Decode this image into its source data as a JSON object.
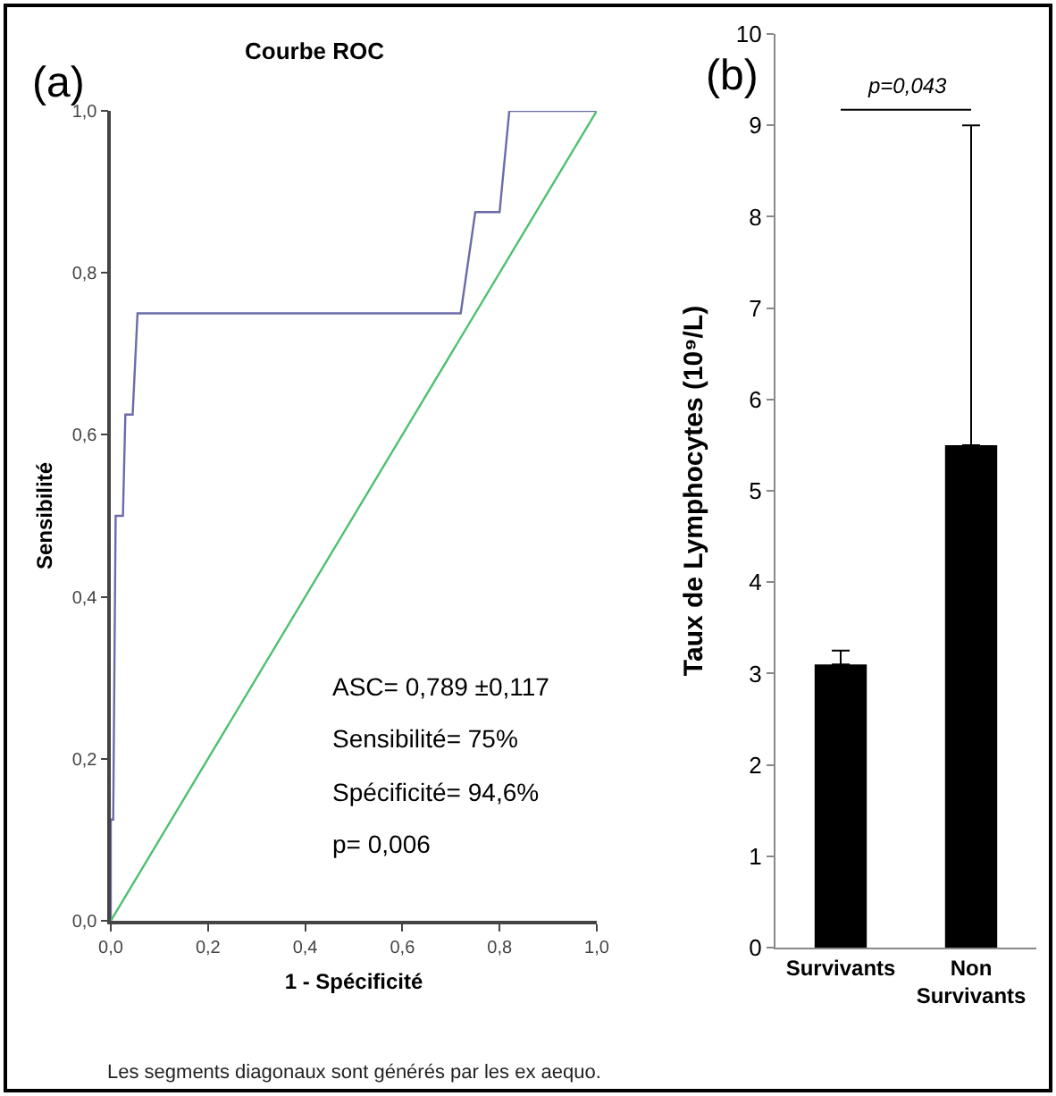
{
  "chart_data": [
    {
      "type": "line",
      "title": "Courbe ROC",
      "xlabel": "1 - Spécificité",
      "ylabel": "Sensibilité",
      "series": [
        {
          "color": "#6b6ba8",
          "x": [
            0,
            0,
            0.005,
            0.01,
            0.025,
            0.03,
            0.045,
            0.055,
            0.72,
            0.75,
            0.8,
            0.82,
            1
          ],
          "values": [
            0,
            0.125,
            0.125,
            0.5,
            0.5,
            0.625,
            0.625,
            0.75,
            0.75,
            0.875,
            0.875,
            1,
            1
          ]
        },
        {
          "color": "#4fbf6f",
          "x": [
            0,
            1
          ],
          "values": [
            0,
            1
          ]
        }
      ],
      "xlim": [
        0,
        1
      ],
      "ylim": [
        0,
        1
      ],
      "xticks": [
        {
          "value": 0,
          "label": "0,0"
        },
        {
          "value": 0.2,
          "label": "0,2"
        },
        {
          "value": 0.4,
          "label": "0,4"
        },
        {
          "value": 0.6,
          "label": "0,6"
        },
        {
          "value": 0.8,
          "label": "0,8"
        },
        {
          "value": 1,
          "label": "1,0"
        }
      ],
      "yticks": [
        {
          "value": 0,
          "label": "0,0"
        },
        {
          "value": 0.2,
          "label": "0,2"
        },
        {
          "value": 0.4,
          "label": "0,4"
        },
        {
          "value": 0.6,
          "label": "0,6"
        },
        {
          "value": 0.8,
          "label": "0,8"
        },
        {
          "value": 1,
          "label": "1,0"
        }
      ],
      "grid": false,
      "marker": "none",
      "line_style": "solid",
      "annotations": [
        "(a)",
        "ASC= 0,789 ±0,117",
        "Sensibilité= 75%",
        "Spécificité= 94,6%",
        "p= 0,006",
        "Les segments diagonaux sont générés par les ex aequo."
      ]
    },
    {
      "type": "bar",
      "ylabel": "Taux de Lymphocytes (10⁹/L)",
      "categories": [
        "Survivants",
        "Non Survivants"
      ],
      "values": [
        3.1,
        5.5
      ],
      "color": "#000000",
      "errors": [
        [
          3.1,
          3.25
        ],
        [
          5.5,
          9
        ]
      ],
      "ylim": [
        0,
        10
      ],
      "yticks": [
        0,
        1,
        2,
        3,
        4,
        5,
        6,
        7,
        8,
        9,
        10
      ],
      "grid": false,
      "annotations": [
        "(b)",
        "p=0,043"
      ]
    }
  ]
}
